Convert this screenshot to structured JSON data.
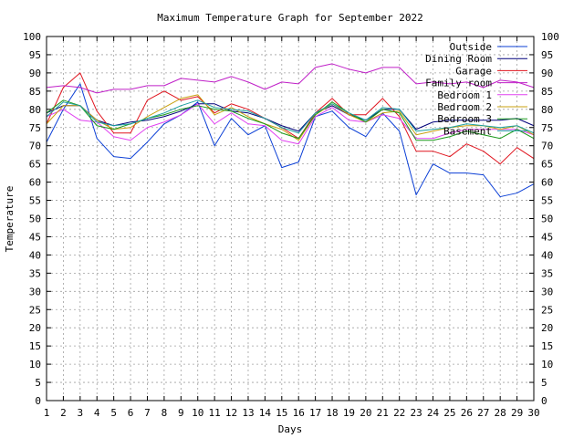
{
  "chart_data": {
    "type": "line",
    "title": "Maximum Temperature Graph for September 2022",
    "xlabel": "Days",
    "ylabel": "Temperature",
    "xlim": [
      1,
      30
    ],
    "ylim": [
      0,
      100
    ],
    "x_ticks": [
      1,
      2,
      3,
      4,
      5,
      6,
      7,
      8,
      9,
      10,
      11,
      12,
      13,
      14,
      15,
      16,
      17,
      18,
      19,
      20,
      21,
      22,
      23,
      24,
      25,
      26,
      27,
      28,
      29,
      30
    ],
    "y_ticks": [
      0,
      5,
      10,
      15,
      20,
      25,
      30,
      35,
      40,
      45,
      50,
      55,
      60,
      65,
      70,
      75,
      80,
      85,
      90,
      95,
      100
    ],
    "grid": true,
    "legend_position": "top-right",
    "x": [
      1,
      2,
      3,
      4,
      5,
      6,
      7,
      8,
      9,
      10,
      11,
      12,
      13,
      14,
      15,
      16,
      17,
      18,
      19,
      20,
      21,
      22,
      23,
      24,
      25,
      26,
      27,
      28,
      29,
      30
    ],
    "series": [
      {
        "name": "Outside",
        "color": "#0b3fd6",
        "values": [
          71,
          80,
          87,
          72,
          67,
          66.5,
          71,
          76,
          78.5,
          82,
          70,
          77.5,
          73,
          75.5,
          64,
          65.5,
          78,
          79.5,
          75,
          72.5,
          79,
          74,
          56.5,
          65,
          62.5,
          62.5,
          62,
          56,
          57,
          59.5
        ]
      },
      {
        "name": "Dining Room",
        "color": "#00007a",
        "values": [
          79,
          81,
          81,
          77,
          75.5,
          76.5,
          77,
          78,
          79.5,
          81.5,
          81.5,
          79.5,
          79,
          77.5,
          75.5,
          74,
          79,
          81,
          78.5,
          77,
          80,
          80,
          74.5,
          76.5,
          77,
          77,
          77,
          77,
          77.5,
          75.5
        ]
      },
      {
        "name": "Garage",
        "color": "#e0141e",
        "values": [
          76,
          86,
          90,
          79.5,
          73.5,
          73.5,
          82.5,
          85,
          82.5,
          83.5,
          79,
          81.5,
          80,
          77.5,
          75,
          72,
          79,
          83,
          78.5,
          78.5,
          83,
          78,
          68.5,
          68.5,
          67,
          70.5,
          68.5,
          65,
          69.5,
          66.5
        ]
      },
      {
        "name": "Family room",
        "color": "#c020c8",
        "values": [
          86,
          86.5,
          86,
          84.5,
          85.5,
          85.5,
          86.5,
          86.5,
          88.5,
          88,
          87.5,
          89,
          87.5,
          85.5,
          87.5,
          87,
          91.5,
          92.5,
          91,
          90,
          91.5,
          91.5,
          87,
          87.5,
          87,
          87.5,
          86,
          88,
          87.5,
          86
        ]
      },
      {
        "name": "Bedroom 1",
        "color": "#e040f0",
        "values": [
          78,
          80,
          77,
          76.5,
          72.5,
          71.5,
          75,
          76.5,
          78.5,
          81.5,
          76,
          79,
          76,
          75.5,
          71.5,
          70.5,
          78,
          80.5,
          77,
          76.5,
          78.5,
          77.5,
          72,
          72,
          73.5,
          74.5,
          74.5,
          74.5,
          74.5,
          73
        ]
      },
      {
        "name": "Bedroom 2",
        "color": "#c8a010",
        "values": [
          76,
          81,
          81,
          77,
          74.5,
          75,
          78,
          80.5,
          83,
          84,
          78.5,
          80.5,
          78,
          76,
          74.5,
          71.5,
          78.5,
          81.5,
          78.5,
          76.5,
          79,
          79.5,
          73,
          74,
          75,
          75.5,
          75.5,
          74.5,
          75.5,
          73
        ]
      },
      {
        "name": "Bedroom 3",
        "color": "#1c9a1c",
        "values": [
          79,
          82.5,
          81,
          75.5,
          74.5,
          76,
          77.5,
          78.5,
          80,
          81,
          80,
          79.5,
          77.5,
          76,
          73.5,
          72,
          78.5,
          82,
          79,
          76.5,
          80,
          79,
          71.5,
          71.5,
          72.5,
          74,
          73,
          72,
          74.5,
          72
        ]
      },
      {
        "name": "Basement",
        "color": "#1ba0a0",
        "values": [
          78,
          82,
          81,
          76.5,
          75.5,
          76,
          77.5,
          79,
          81,
          82.5,
          80.5,
          80,
          79.5,
          77.5,
          75,
          73.5,
          79,
          81.5,
          79,
          77,
          80.5,
          80,
          74,
          74.5,
          75,
          76,
          75.5,
          75,
          75.5,
          73.5
        ]
      }
    ]
  }
}
